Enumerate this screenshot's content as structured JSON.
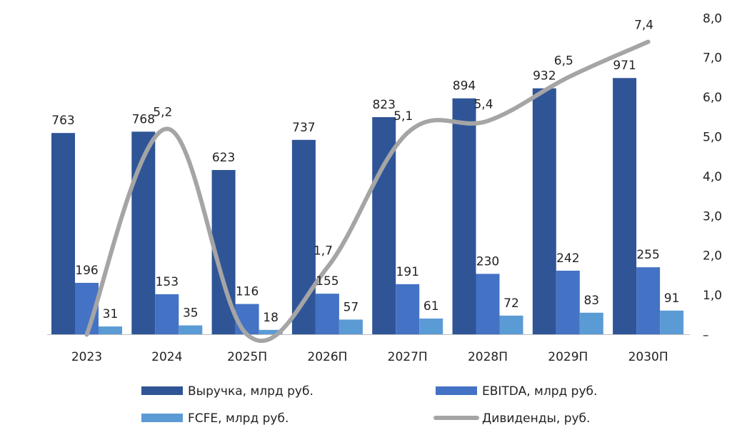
{
  "chart_data": {
    "type": "bar",
    "categories": [
      "2023",
      "2024",
      "2025П",
      "2026П",
      "2027П",
      "2028П",
      "2029П",
      "2030П"
    ],
    "series": [
      {
        "name": "Выручка, млрд руб.",
        "type": "bar",
        "axis": "left",
        "color": "#2F5597",
        "values": [
          763,
          768,
          623,
          737,
          823,
          894,
          932,
          971
        ]
      },
      {
        "name": "EBITDA, млрд руб.",
        "type": "bar",
        "axis": "left",
        "color": "#4472C4",
        "values": [
          196,
          153,
          116,
          155,
          191,
          230,
          242,
          255
        ]
      },
      {
        "name": "FCFE, млрд руб.",
        "type": "bar",
        "axis": "left",
        "color": "#5B9BD5",
        "values": [
          31,
          35,
          18,
          57,
          61,
          72,
          83,
          91
        ]
      },
      {
        "name": "Дивиденды, руб.",
        "type": "line",
        "axis": "right",
        "color": "#A5A5A5",
        "values": [
          0,
          5.2,
          0,
          1.7,
          5.1,
          5.4,
          6.5,
          7.4
        ]
      }
    ],
    "bar_labels": [
      [
        "763",
        "768",
        "623",
        "737",
        "823",
        "894",
        "932",
        "971"
      ],
      [
        "196",
        "153",
        "116",
        "155",
        "191",
        "230",
        "242",
        "255"
      ],
      [
        "31",
        "35",
        "18",
        "57",
        "61",
        "72",
        "83",
        "91"
      ]
    ],
    "line_labels": [
      "",
      "5,2",
      "",
      "1,7",
      "5,1",
      "5,4",
      "6,5",
      "7,4"
    ],
    "left_ylim": [
      0,
      1200
    ],
    "right_ylim": [
      0,
      8
    ],
    "right_ticks": [
      "–",
      "1,0",
      "2,0",
      "3,0",
      "4,0",
      "5,0",
      "6,0",
      "7,0",
      "8,0"
    ],
    "grid": false,
    "legend_position": "bottom"
  }
}
